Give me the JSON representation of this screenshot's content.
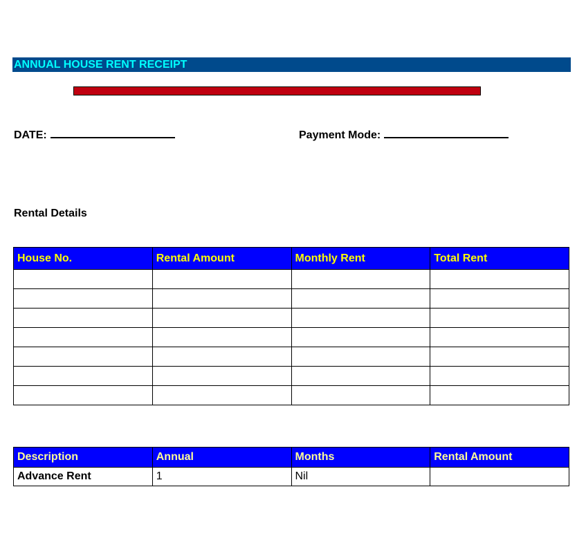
{
  "title": "ANNUAL HOUSE RENT RECEIPT",
  "colors": {
    "title_bg": "#004a8c",
    "title_text": "#00ffff",
    "bar": "#c00010",
    "table_header": "#0000ff",
    "header_text": "#ffff00"
  },
  "date_label": "DATE:",
  "payment_mode_label": "Payment Mode:",
  "section_label": "Rental Details",
  "rental_table": {
    "headers": [
      "House No.",
      "Rental Amount",
      "Monthly Rent",
      "Total Rent"
    ],
    "rows": [
      [
        "",
        "",
        "",
        ""
      ],
      [
        "",
        "",
        "",
        ""
      ],
      [
        "",
        "",
        "",
        ""
      ],
      [
        "",
        "",
        "",
        ""
      ],
      [
        "",
        "",
        "",
        ""
      ],
      [
        "",
        "",
        "",
        ""
      ],
      [
        "",
        "",
        "",
        ""
      ]
    ]
  },
  "summary_table": {
    "headers": [
      "Description",
      "Annual",
      "Months",
      "Rental Amount"
    ],
    "rows": [
      [
        "Advance Rent",
        "1",
        "Nil",
        ""
      ]
    ]
  }
}
